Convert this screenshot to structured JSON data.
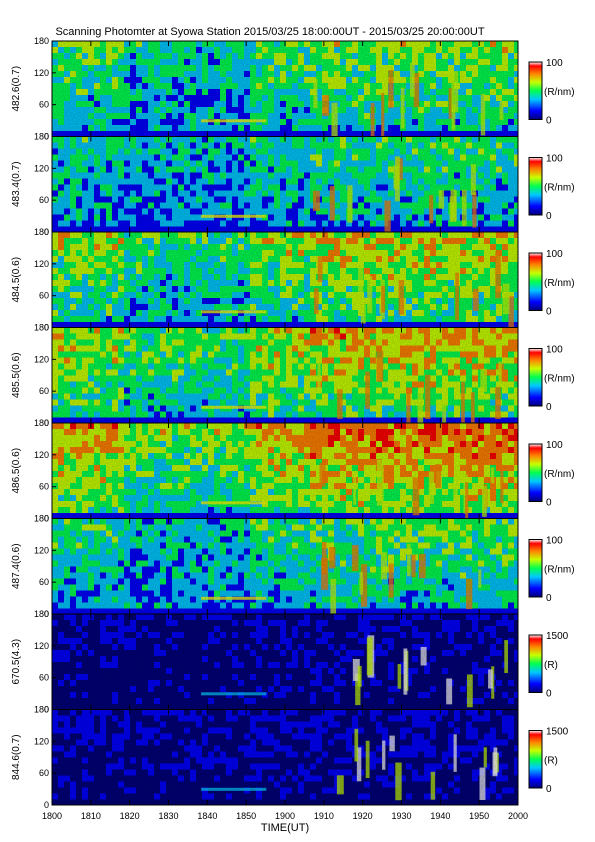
{
  "title": "Scanning Photomter at Syowa Station 2015/03/25 18:00:00UT - 2015/03/25 20:00:00UT",
  "chart_data": {
    "type": "heatmap",
    "title": "Scanning Photomter at Syowa Station 2015/03/25 18:00:00UT - 2015/03/25 20:00:00UT",
    "xlabel": "TIME(UT)",
    "x_ticks": [
      "1800",
      "1810",
      "1820",
      "1830",
      "1840",
      "1850",
      "1900",
      "1910",
      "1920",
      "1930",
      "1940",
      "1950",
      "2000"
    ],
    "y_ticks": [
      "0",
      "60",
      "120",
      "180"
    ],
    "ylim": [
      0,
      180
    ],
    "colormap": [
      "#00007a",
      "#0000ff",
      "#00c8ff",
      "#00ff50",
      "#c8ff00",
      "#ff8000",
      "#ff0000",
      "#ffffff"
    ],
    "panels": [
      {
        "label": "482.6(0.7)",
        "cb_max": "100",
        "cb_min": "0",
        "unit": "(R/nm)"
      },
      {
        "label": "483.4(0.7)",
        "cb_max": "100",
        "cb_min": "0",
        "unit": "(R/nm)"
      },
      {
        "label": "484.5(0.6)",
        "cb_max": "100",
        "cb_min": "0",
        "unit": "(R/nm)"
      },
      {
        "label": "485.5(0.6)",
        "cb_max": "100",
        "cb_min": "0",
        "unit": "(R/nm)"
      },
      {
        "label": "486.5(0.6)",
        "cb_max": "100",
        "cb_min": "0",
        "unit": "(R/nm)"
      },
      {
        "label": "487.4(0.6)",
        "cb_max": "100",
        "cb_min": "0",
        "unit": "(R/nm)"
      },
      {
        "label": "670.5(4.3)",
        "cb_max": "1500",
        "cb_min": "0",
        "unit": "(R)"
      },
      {
        "label": "844.6(0.7)",
        "cb_max": "1500",
        "cb_min": "0",
        "unit": "(R)"
      }
    ]
  }
}
